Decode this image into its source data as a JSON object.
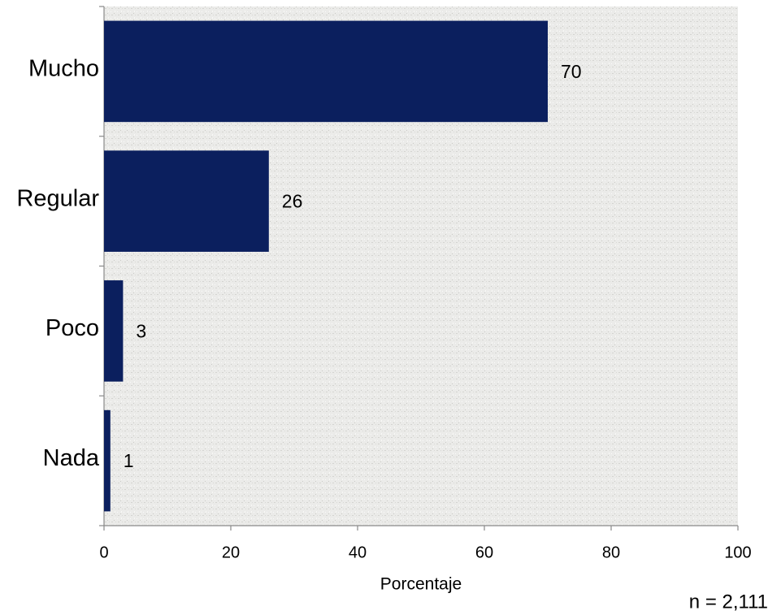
{
  "chart_data": {
    "type": "barh",
    "categories": [
      "Mucho",
      "Regular",
      "Poco",
      "Nada"
    ],
    "values": [
      70,
      26,
      3,
      1
    ],
    "color": "#0b1f5e",
    "xlabel": "Porcentaje",
    "xlim": [
      0,
      100
    ],
    "xticks": [
      0,
      20,
      40,
      60,
      80,
      100
    ],
    "annotation": "n = 2,111"
  }
}
